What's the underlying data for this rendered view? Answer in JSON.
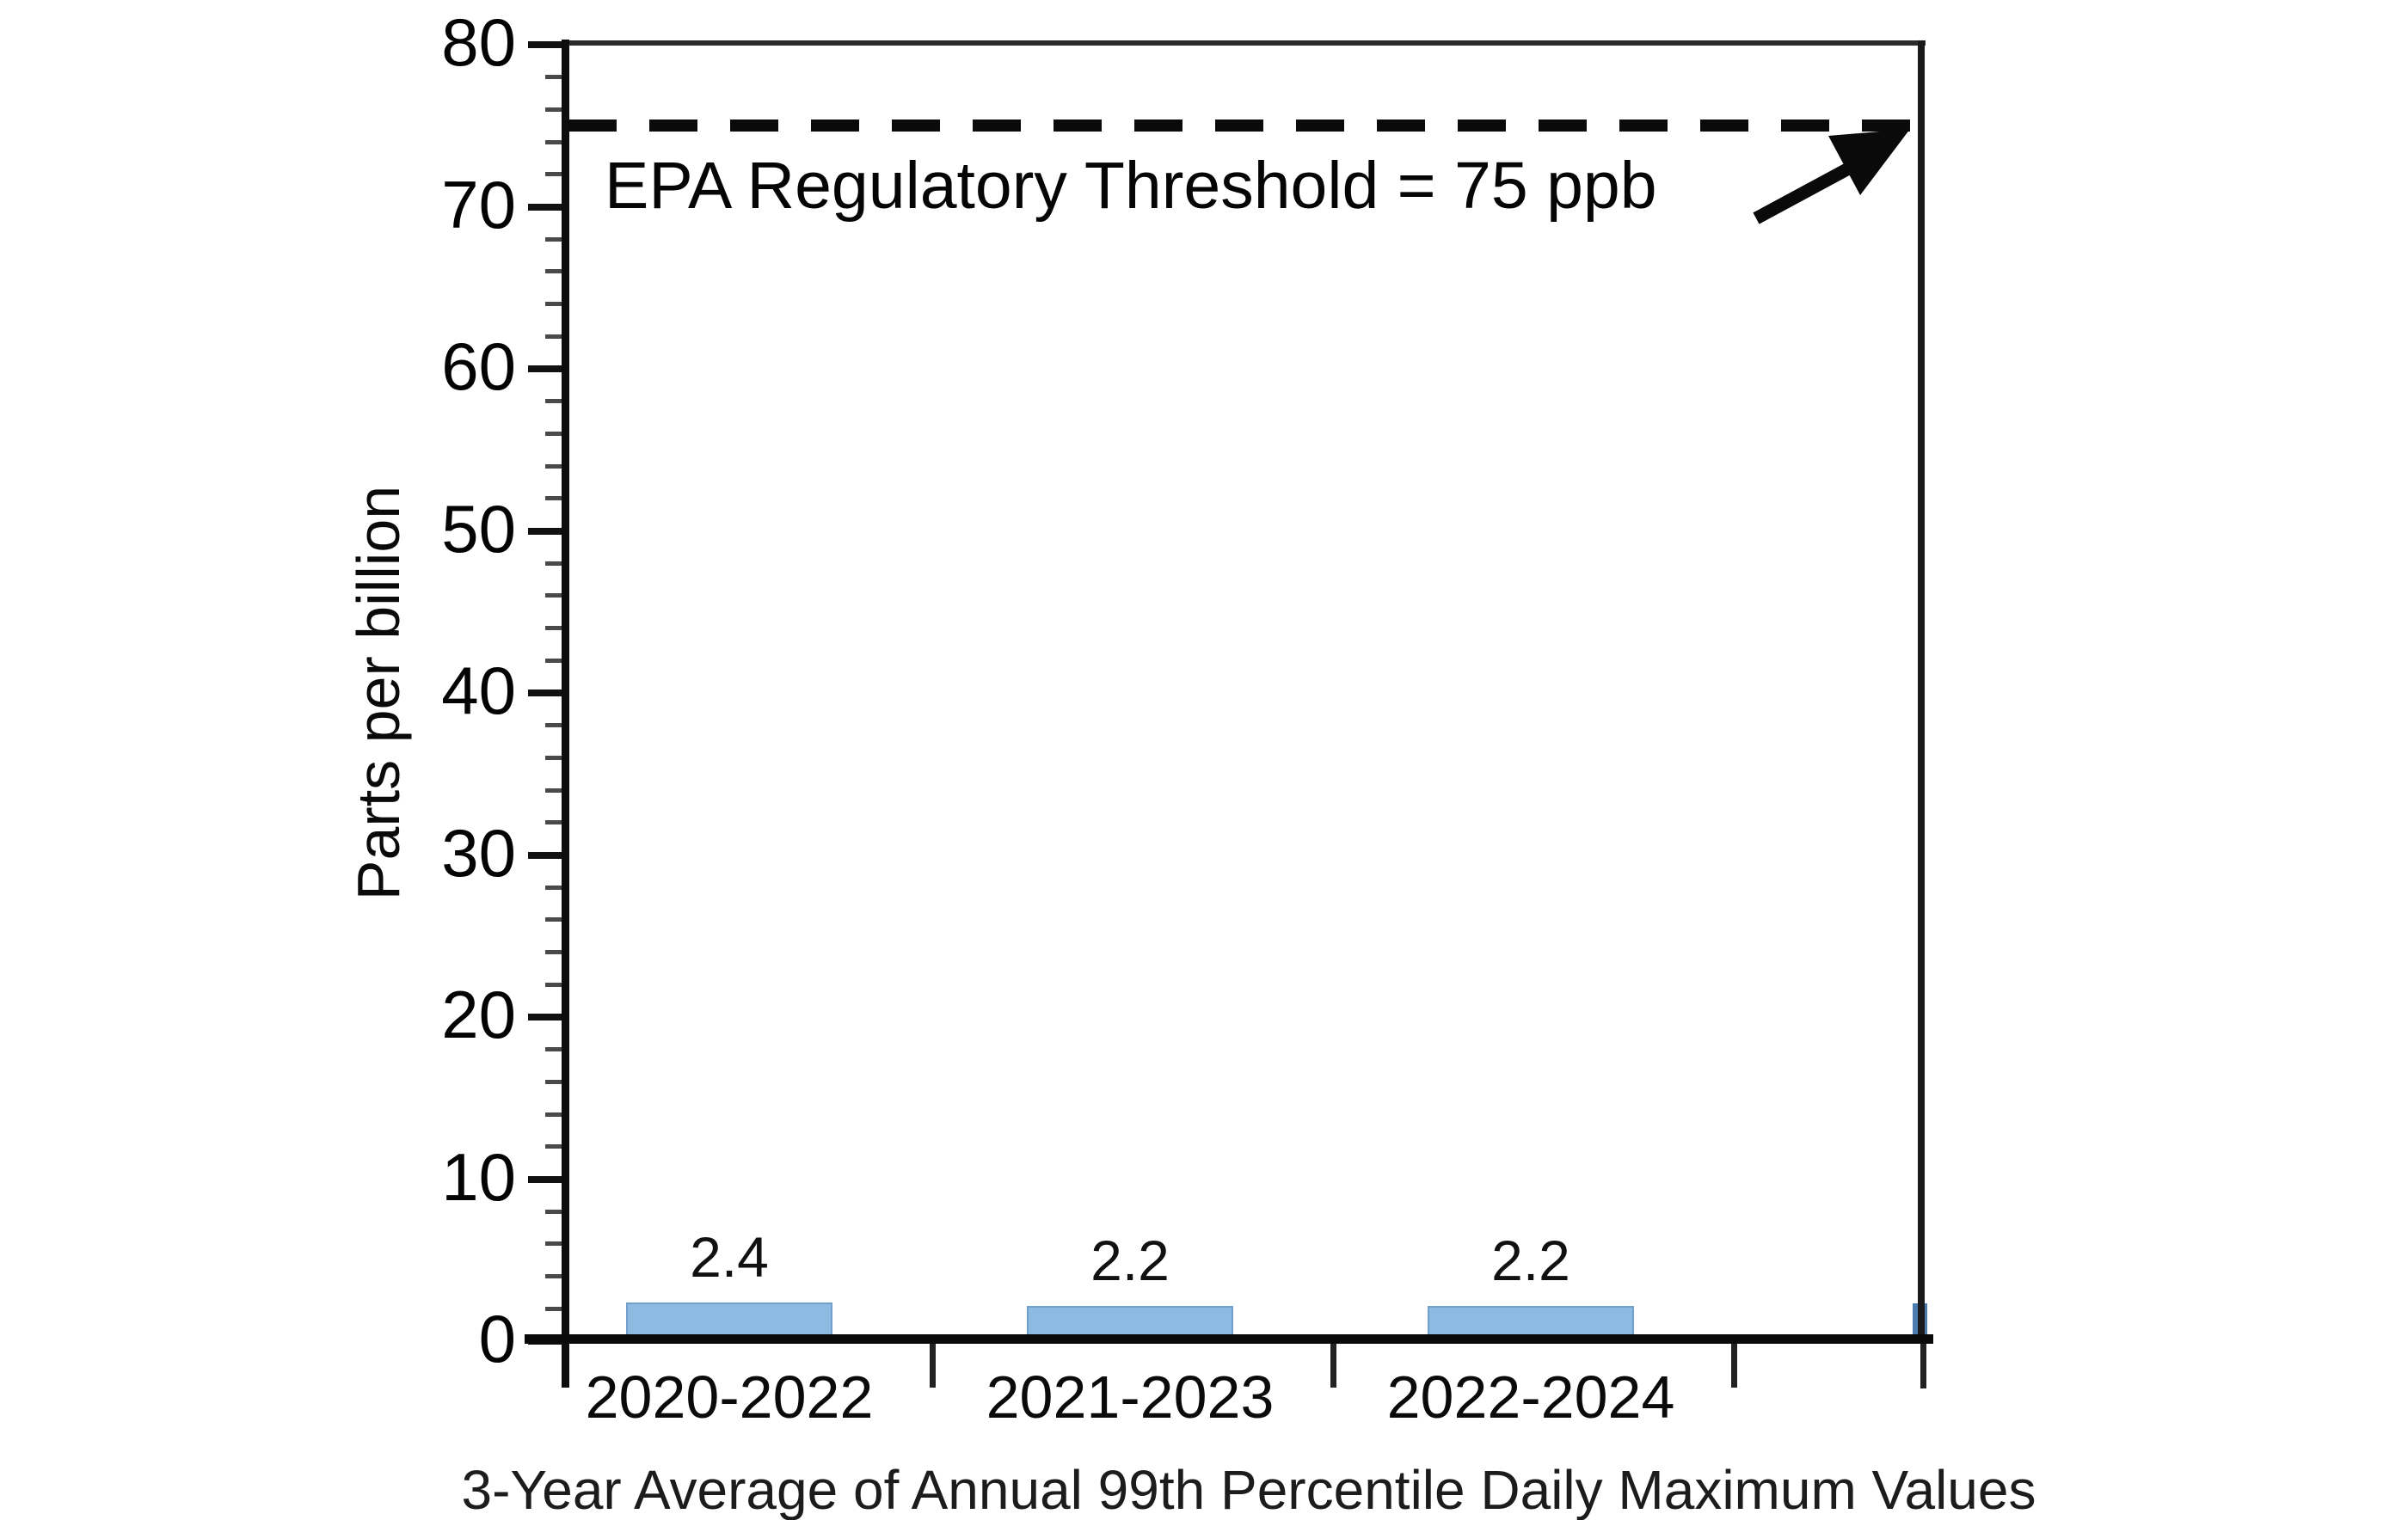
{
  "chart_data": {
    "type": "bar",
    "title": "",
    "categories": [
      "2020-2022",
      "2021-2023",
      "2022-2024"
    ],
    "values": [
      2.4,
      2.2,
      2.2
    ],
    "value_labels": [
      "2.4",
      "2.2",
      "2.2"
    ],
    "xlabel": "3-Year Average of Annual 99th Percentile Daily Maximum Values",
    "ylabel": "Parts per billion",
    "ylim": [
      0,
      80
    ],
    "ytick_step": 10,
    "ytick_minor_step": 2,
    "ytick_labels": [
      "0",
      "10",
      "20",
      "30",
      "40",
      "50",
      "60",
      "70",
      "80"
    ],
    "grid": false,
    "legend": "none",
    "threshold": {
      "value": 75,
      "label": "EPA Regulatory Threshold = 75 ppb"
    },
    "colors": {
      "bar_fill": "#8CBAE0",
      "bar_edge": "#5F91BE",
      "axis": "#0a0a0a",
      "threshold_line": "#0a0a0a",
      "corner_mark": "#4a7cb0"
    }
  }
}
